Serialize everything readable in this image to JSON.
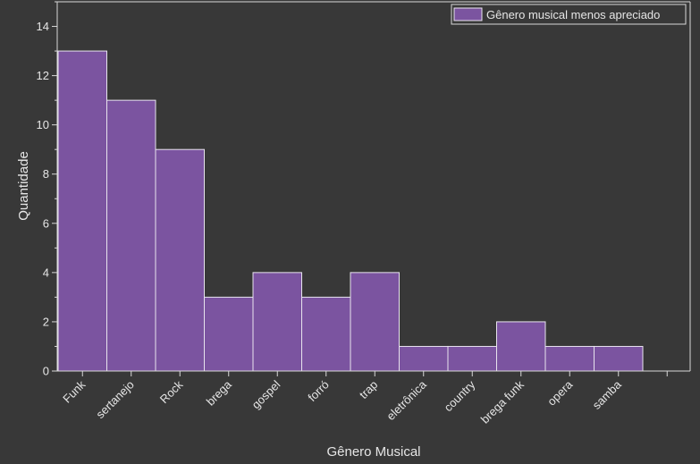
{
  "chart_data": {
    "type": "bar",
    "categories": [
      "Funk",
      "sertanejo",
      "Rock",
      "brega",
      "gospel",
      "forró",
      "trap",
      "eletrônica",
      "country",
      "brega funk",
      "opera",
      "samba"
    ],
    "series": [
      {
        "name": "Gênero musical menos apreciado",
        "values": [
          13,
          11,
          9,
          3,
          4,
          3,
          4,
          1,
          1,
          2,
          1,
          1
        ]
      }
    ],
    "xlabel": "Gênero Musical",
    "ylabel": "Quantidade",
    "ylim": [
      0,
      15
    ],
    "yticks": [
      0,
      2,
      4,
      6,
      8,
      10,
      12,
      14
    ],
    "grid": false,
    "legend_position": "top-right",
    "colors": {
      "background": "#383838",
      "bar_fill": "#7b54a0",
      "bar_stroke": "#e8e4ee",
      "axis": "#d8d8d8",
      "text": "#e6e6e6"
    }
  }
}
